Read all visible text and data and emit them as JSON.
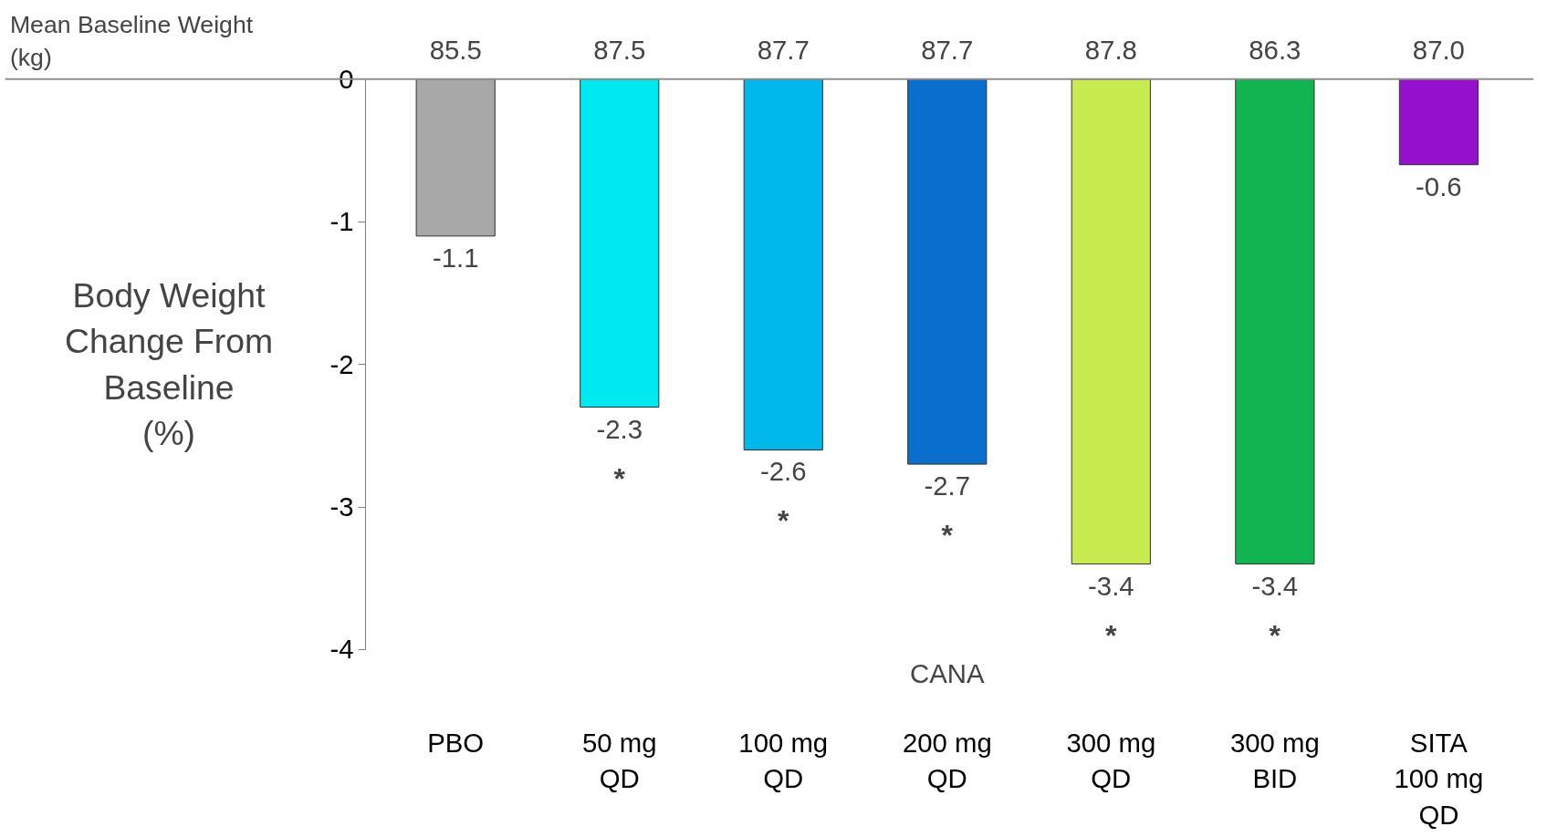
{
  "chart_data": {
    "type": "bar",
    "ylabel": "Body Weight\nChange From\nBaseline\n(%)",
    "categories": [
      "PBO",
      "50 mg\nQD",
      "100 mg\nQD",
      "200 mg\nQD",
      "300 mg\nQD",
      "300 mg\nBID",
      "SITA\n100 mg\nQD"
    ],
    "values": [
      -1.1,
      -2.3,
      -2.6,
      -2.7,
      -3.4,
      -3.4,
      -0.6
    ],
    "colors": [
      "#a8a8a8",
      "#00e8f0",
      "#00b8ec",
      "#0870cc",
      "#c8ec50",
      "#10b450",
      "#9410cc"
    ],
    "ylim": [
      -4,
      0
    ],
    "yticks": [
      0,
      -1,
      -2,
      -3,
      -4
    ],
    "data_labels": true,
    "grid": false,
    "annotations": [
      "Mean Baseline Weight\n(kg)",
      "CANA",
      "85.5",
      "87.5",
      "87.7",
      "87.7",
      "87.8",
      "86.3",
      "87.0",
      "*",
      "*",
      "*",
      "*",
      "*"
    ]
  }
}
